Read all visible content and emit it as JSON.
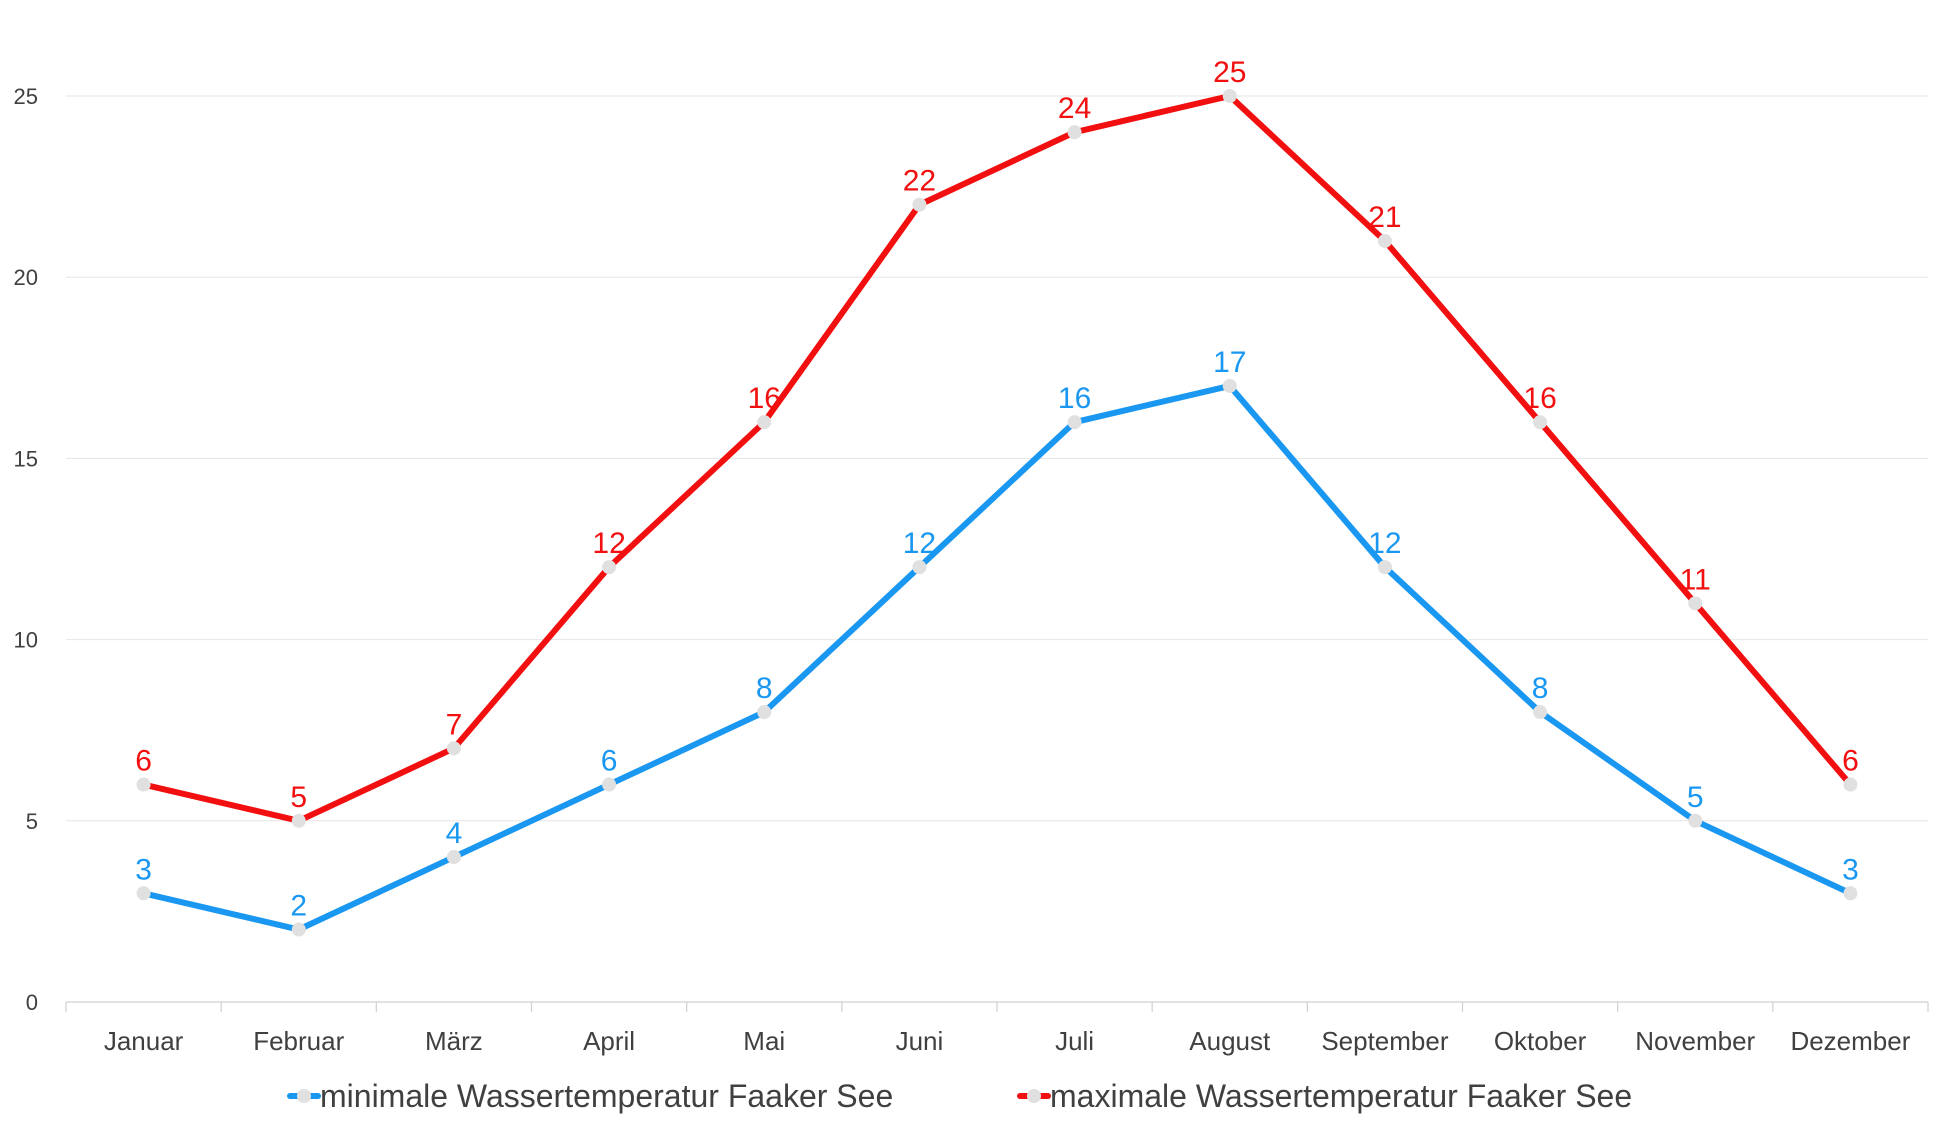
{
  "chart_data": {
    "type": "line",
    "categories": [
      "Januar",
      "Februar",
      "März",
      "April",
      "Mai",
      "Juni",
      "Juli",
      "August",
      "September",
      "Oktober",
      "November",
      "Dezember"
    ],
    "series": [
      {
        "name": "minimale Wassertemperatur Faaker See",
        "color": "#1a97f0",
        "values": [
          3,
          2,
          4,
          6,
          8,
          12,
          16,
          17,
          12,
          8,
          5,
          3
        ]
      },
      {
        "name": "maximale Wassertemperatur Faaker See",
        "color": "#f20f0f",
        "values": [
          6,
          5,
          7,
          12,
          16,
          22,
          24,
          25,
          21,
          16,
          11,
          6
        ]
      }
    ],
    "ylim": [
      0,
      25
    ],
    "yticks": [
      "0",
      "5",
      "10",
      "15",
      "20",
      "25"
    ],
    "grid": true,
    "legend_position": "bottom",
    "marker_color": "#e0e0e0"
  }
}
